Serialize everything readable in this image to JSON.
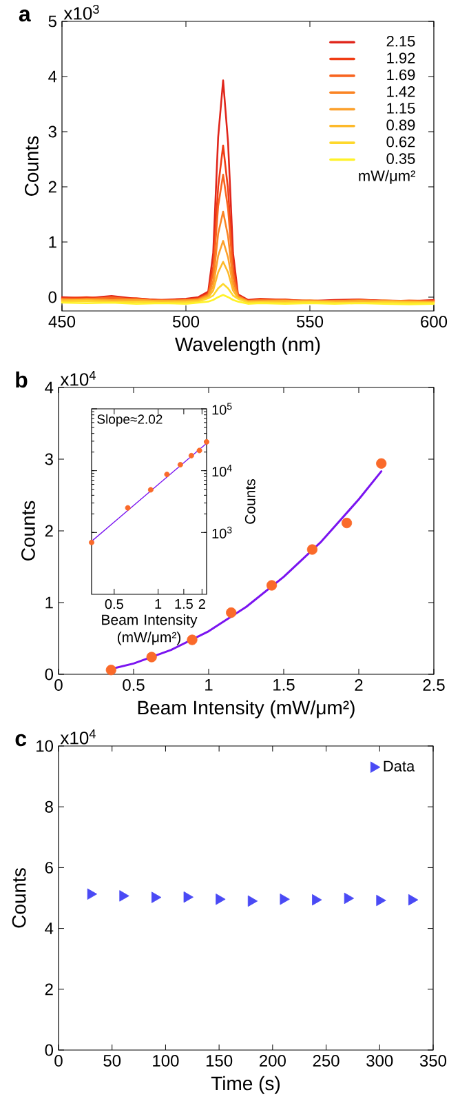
{
  "chart_data": [
    {
      "type": "line",
      "title": "a",
      "xlabel": "Wavelength (nm)",
      "ylabel": "Counts",
      "legend_title": "mW/μm²",
      "annotations": [
        "x10$^{3}$"
      ],
      "xlim": [
        450,
        600
      ],
      "xticks": [
        450,
        500,
        550,
        600
      ],
      "ylim": [
        -0.25,
        5
      ],
      "yticks": [
        0,
        1,
        2,
        3,
        4,
        5
      ],
      "legend": "top right",
      "line_style": "solid",
      "x": [
        450,
        460,
        470,
        480,
        490,
        500,
        505,
        509,
        511,
        513,
        515,
        517,
        519,
        521,
        525,
        530,
        540,
        550,
        560,
        570,
        580,
        590,
        600
      ],
      "series": [
        {
          "name": "2.15",
          "color": "#e0261b",
          "values": [
            0.0,
            -0.02,
            0.02,
            -0.03,
            -0.05,
            -0.03,
            0.0,
            0.1,
            0.8,
            2.9,
            3.93,
            2.8,
            0.8,
            0.05,
            -0.05,
            -0.03,
            -0.05,
            -0.07,
            -0.05,
            -0.04,
            -0.07,
            -0.08,
            -0.05
          ]
        },
        {
          "name": "1.92",
          "color": "#f03c14",
          "values": [
            -0.02,
            0.0,
            -0.03,
            -0.02,
            -0.06,
            -0.04,
            -0.02,
            0.07,
            0.55,
            2.0,
            2.75,
            1.95,
            0.55,
            0.03,
            -0.06,
            -0.05,
            -0.04,
            -0.08,
            -0.06,
            -0.05,
            -0.06,
            -0.07,
            -0.06
          ]
        },
        {
          "name": "1.69",
          "color": "#f86420",
          "values": [
            -0.03,
            -0.04,
            0.0,
            -0.05,
            -0.05,
            -0.06,
            -0.03,
            0.05,
            0.45,
            1.65,
            2.22,
            1.6,
            0.45,
            0.02,
            -0.07,
            -0.04,
            -0.06,
            -0.06,
            -0.08,
            -0.05,
            -0.08,
            -0.06,
            -0.07
          ]
        },
        {
          "name": "1.42",
          "color": "#fa8424",
          "values": [
            -0.05,
            -0.03,
            -0.04,
            -0.06,
            -0.07,
            -0.05,
            -0.04,
            0.04,
            0.3,
            1.15,
            1.55,
            1.1,
            0.3,
            0.02,
            -0.07,
            -0.06,
            -0.07,
            -0.06,
            -0.07,
            -0.06,
            -0.07,
            -0.09,
            -0.08
          ]
        },
        {
          "name": "1.15",
          "color": "#fca12c",
          "values": [
            -0.04,
            -0.06,
            -0.05,
            -0.04,
            -0.08,
            -0.06,
            -0.05,
            0.02,
            0.2,
            0.75,
            1.02,
            0.72,
            0.2,
            0.0,
            -0.08,
            -0.07,
            -0.06,
            -0.09,
            -0.07,
            -0.08,
            -0.06,
            -0.08,
            -0.09
          ]
        },
        {
          "name": "0.89",
          "color": "#fdb92a",
          "values": [
            -0.06,
            -0.05,
            -0.07,
            -0.08,
            -0.07,
            -0.08,
            -0.06,
            0.0,
            0.12,
            0.45,
            0.64,
            0.45,
            0.12,
            -0.02,
            -0.08,
            -0.09,
            -0.07,
            -0.08,
            -0.09,
            -0.07,
            -0.09,
            -0.08,
            -0.1
          ]
        },
        {
          "name": "0.62",
          "color": "#fed82c",
          "values": [
            -0.08,
            -0.07,
            -0.09,
            -0.08,
            -0.1,
            -0.09,
            -0.08,
            -0.02,
            0.03,
            0.16,
            0.24,
            0.16,
            0.03,
            -0.03,
            -0.1,
            -0.09,
            -0.1,
            -0.08,
            -0.1,
            -0.11,
            -0.09,
            -0.1,
            -0.1
          ]
        },
        {
          "name": "0.35",
          "color": "#fff22a",
          "values": [
            -0.1,
            -0.11,
            -0.1,
            -0.12,
            -0.11,
            -0.12,
            -0.1,
            -0.08,
            -0.05,
            0.0,
            0.04,
            0.0,
            -0.05,
            -0.08,
            -0.12,
            -0.11,
            -0.12,
            -0.11,
            -0.12,
            -0.11,
            -0.12,
            -0.13,
            -0.12
          ]
        }
      ]
    },
    {
      "type": "scatter",
      "title": "b",
      "xlabel": "Beam Intensity (mW/μm²)",
      "ylabel": "Counts",
      "annotations": [
        "x10$^{4}$"
      ],
      "xlim": [
        0,
        2.5
      ],
      "xticks": [
        0,
        0.5,
        1,
        1.5,
        2,
        2.5
      ],
      "ylim": [
        0,
        4
      ],
      "yticks": [
        0,
        1,
        2,
        3,
        4
      ],
      "marker": "circle",
      "series": [
        {
          "color": "#fa6a2a",
          "x": [
            0.35,
            0.62,
            0.89,
            1.15,
            1.42,
            1.69,
            1.92,
            2.15
          ],
          "values": [
            0.06,
            0.24,
            0.48,
            0.86,
            1.24,
            1.74,
            2.11,
            2.94
          ]
        },
        {
          "type": "line",
          "marker": "none",
          "color": "#7a14f0",
          "x": [
            0.36,
            0.5,
            0.75,
            1.0,
            1.25,
            1.5,
            1.75,
            2.0,
            2.15
          ],
          "values": [
            0.08,
            0.15,
            0.34,
            0.6,
            0.94,
            1.36,
            1.85,
            2.44,
            2.83
          ]
        }
      ]
    },
    {
      "type": "scatter",
      "xlabel": "Beam Intensity (mW/μm²)",
      "ylabel": "Counts",
      "annotations": [
        "Slope≈2.02"
      ],
      "log": "xy",
      "xlim": [
        0.35,
        2.15
      ],
      "xticks": [
        0.5,
        1,
        1.5,
        2
      ],
      "ylim": [
        100,
        100000
      ],
      "yticks": [
        {
          "value": 1000,
          "label": "10$^{3}$"
        },
        {
          "value": 10000,
          "label": "10$^{4}$"
        },
        {
          "value": 100000,
          "label": "10$^{5}$"
        }
      ],
      "marker": "circle",
      "series": [
        {
          "color": "#fa6a2a",
          "x": [
            0.35,
            0.62,
            0.89,
            1.15,
            1.42,
            1.69,
            1.92,
            2.15
          ],
          "values": [
            690,
            2500,
            4900,
            8700,
            12500,
            17500,
            21200,
            29200
          ]
        },
        {
          "type": "line",
          "marker": "none",
          "color": "#7a14f0",
          "x": [
            0.35,
            2.15
          ],
          "values": [
            720,
            27700
          ]
        }
      ]
    },
    {
      "type": "scatter",
      "title": "c",
      "xlabel": "Time (s)",
      "ylabel": "Counts",
      "annotations": [
        "x10$^{4}$"
      ],
      "xlim": [
        0,
        350
      ],
      "xticks": [
        0,
        50,
        100,
        150,
        200,
        250,
        300,
        350
      ],
      "ylim": [
        0,
        10
      ],
      "yticks": [
        0,
        2,
        4,
        6,
        8,
        10
      ],
      "marker": "triangle",
      "legend": "top right",
      "x": [
        30,
        60,
        90,
        120,
        150,
        180,
        210,
        240,
        270,
        300,
        330
      ],
      "series": [
        {
          "name": "Data",
          "color": "#4a4af5",
          "values": [
            5.13,
            5.07,
            5.02,
            5.03,
            4.96,
            4.9,
            4.96,
            4.94,
            4.99,
            4.92,
            4.94
          ]
        }
      ]
    }
  ]
}
